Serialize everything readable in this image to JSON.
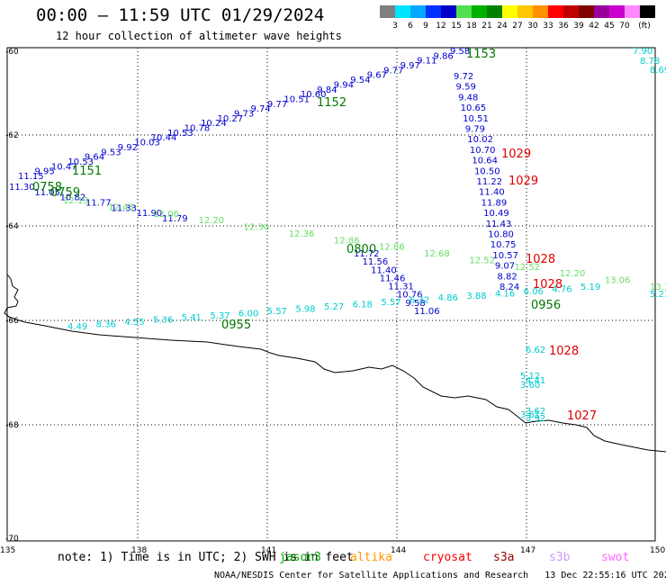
{
  "title": "00:00 – 11:59 UTC 01/29/2024",
  "subtitle": "12 hour collection of altimeter wave heights",
  "legend": {
    "unit": "(ft)",
    "colors": [
      "#7f7f7f",
      "#00e5ff",
      "#00a8ff",
      "#0030ff",
      "#0000c8",
      "#50e050",
      "#00b000",
      "#008000",
      "#ffff00",
      "#ffc800",
      "#ff9000",
      "#ff0000",
      "#c00000",
      "#800000",
      "#990099",
      "#cc00cc",
      "#ff88ff",
      "#000000"
    ],
    "ticks": [
      "3",
      "6",
      "9",
      "12",
      "15",
      "18",
      "21",
      "24",
      "27",
      "30",
      "33",
      "36",
      "39",
      "42",
      "45",
      "70"
    ]
  },
  "axes": {
    "lat_labels": [
      "-60",
      "-62",
      "-64",
      "-66",
      "-68",
      "-70"
    ],
    "lon_labels": [
      "135",
      "138",
      "141",
      "144",
      "147",
      "150"
    ]
  },
  "tracks": {
    "track1_top": {
      "color": "#0000cc",
      "labels": [
        "11.15",
        "9.95",
        "10.47",
        "10.53",
        "9.64",
        "9.53",
        "9.92",
        "10.03",
        "10.44",
        "10.53",
        "10.78",
        "10.24",
        "10.27",
        "9.73",
        "9.74",
        "9.77",
        "10.51",
        "10.60",
        "9.84",
        "9.94",
        "9.54",
        "9.67",
        "9.77",
        "9.97",
        "9.11",
        "9.86",
        "9.58"
      ],
      "times": [
        "1151",
        "1152",
        "1153"
      ]
    },
    "track1_desc": {
      "color": "#0000cc",
      "labels": [
        "9.72",
        "9.59",
        "9.48",
        "10.65",
        "10.51",
        "9.79",
        "10.02",
        "10.70",
        "10.64",
        "10.50",
        "11.22",
        "11.40",
        "11.89",
        "10.49",
        "11.43",
        "10.80",
        "10.75",
        "10.57",
        "9.07",
        "8.82",
        "8.24"
      ],
      "times": [
        "1029",
        "1029",
        "1028",
        "1028"
      ]
    },
    "track2": {
      "color": "#0000cc",
      "labels": [
        "11.30",
        "11.05",
        "10.82",
        "11.77",
        "11.33",
        "11.90",
        "11.79"
      ],
      "times": [
        "0758",
        "0759"
      ]
    },
    "track3": {
      "color": "#66dd66",
      "labels": [
        "12.13",
        "12.43",
        "12.06",
        "12.20",
        "12.30",
        "12.36",
        "12.86",
        "12.86",
        "12.68",
        "12.52",
        "12.52",
        "12.20",
        "13.06",
        "13.3"
      ]
    },
    "track4": {
      "color": "#0000cc",
      "labels": [
        "11.72",
        "11.56",
        "11.40",
        "11.46",
        "11.31",
        "10.76",
        "9.58",
        "11.06"
      ],
      "times": [
        "0800",
        "0956"
      ]
    },
    "track5": {
      "color": "#00cccc",
      "labels": [
        "4.49",
        "8.36",
        "4.55",
        "5.36",
        "5.41",
        "5.37",
        "6.00",
        "5.57",
        "5.98",
        "5.27",
        "6.18",
        "5.57",
        "6.32",
        "4.86",
        "3.88",
        "4.16",
        "6.06",
        "4.76",
        "5.19",
        "5.21",
        "6.62",
        "5.12",
        "4.41",
        "3.60",
        "3.62",
        "3.61",
        "3.92",
        "7.90",
        "8.78",
        "8.69"
      ],
      "times": [
        "0955"
      ]
    },
    "track6": {
      "color": "#00cccc",
      "labels": [],
      "times": [
        "1028",
        "1027"
      ]
    }
  },
  "footer": {
    "note": "note: 1) Time is in UTC; 2) SWH is in feet",
    "satellites": [
      {
        "name": "jason3",
        "color": "#00aa00"
      },
      {
        "name": "altika",
        "color": "#ff9900"
      },
      {
        "name": "cryosat",
        "color": "#ff0000"
      },
      {
        "name": "s3a",
        "color": "#990000"
      },
      {
        "name": "s3b",
        "color": "#cc99ff"
      },
      {
        "name": "swot",
        "color": "#ff66ff"
      }
    ],
    "credit": "NOAA/NESDIS Center for Satellite Applications and Research   13 Dec 22:55:16 UTC 2024"
  }
}
